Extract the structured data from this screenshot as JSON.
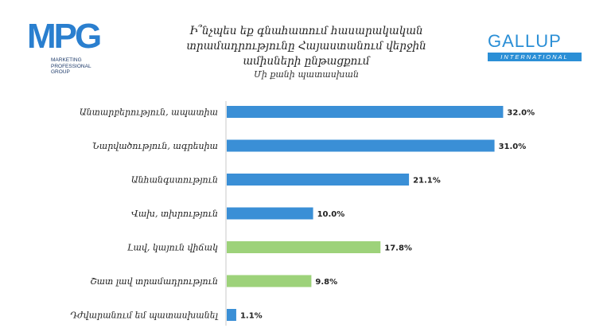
{
  "logos": {
    "mpg": {
      "word": "MPG",
      "sub": [
        "MARKETING",
        "PROFESSIONAL",
        "GROUP"
      ]
    },
    "gallup": {
      "word": "GALLUP",
      "sub": "INTERNATIONAL"
    }
  },
  "colors": {
    "blue": "#3a8fd6",
    "green": "#9dd27a"
  },
  "chart_data": {
    "type": "bar",
    "orientation": "horizontal",
    "title_lines": [
      "Ի՞նչպես եք գնահատում հասարակական",
      "տրամադրությունը Հայաստանում վերջին",
      "ամիսների ընթացքում"
    ],
    "subtitle": "Մի քանի պատասխան",
    "categories": [
      "Անտարբերություն, ապատիա",
      "Նարվածություն, ագրեսիա",
      "Անհանգստություն",
      "Վախ, տխրություն",
      "Լավ, կայուն վիճակ",
      "Շատ լավ տրամադրություն",
      "Դժվարանում եմ պատասխանել"
    ],
    "values": [
      32.0,
      31.0,
      21.1,
      10.0,
      17.8,
      9.8,
      1.1
    ],
    "value_labels": [
      "32.0%",
      "31.0%",
      "21.1%",
      "10.0%",
      "17.8%",
      "9.8%",
      "1.1%"
    ],
    "bar_colors": [
      "#3a8fd6",
      "#3a8fd6",
      "#3a8fd6",
      "#3a8fd6",
      "#9dd27a",
      "#9dd27a",
      "#3a8fd6"
    ],
    "xlim": [
      0,
      35
    ],
    "grid": false,
    "legend": "none"
  }
}
